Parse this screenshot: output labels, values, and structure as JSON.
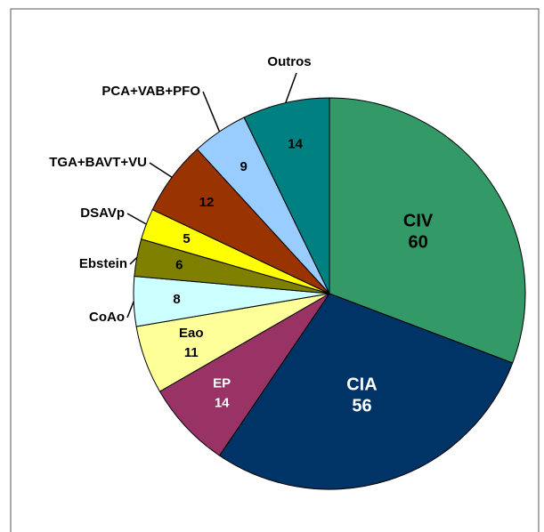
{
  "chart_data": {
    "type": "pie",
    "categories": [
      "CIV",
      "CIA",
      "EP",
      "Eao",
      "CoAo",
      "Ebstein",
      "DSAVp",
      "TGA+BAVT+VU",
      "PCA+VAB+PFO",
      "Outros"
    ],
    "values": [
      60,
      56,
      14,
      11,
      8,
      6,
      5,
      12,
      9,
      14
    ],
    "colors": [
      "#339966",
      "#003366",
      "#993366",
      "#ffff99",
      "#ccffff",
      "#808000",
      "#ffff00",
      "#993300",
      "#99ccff",
      "#008080"
    ]
  }
}
